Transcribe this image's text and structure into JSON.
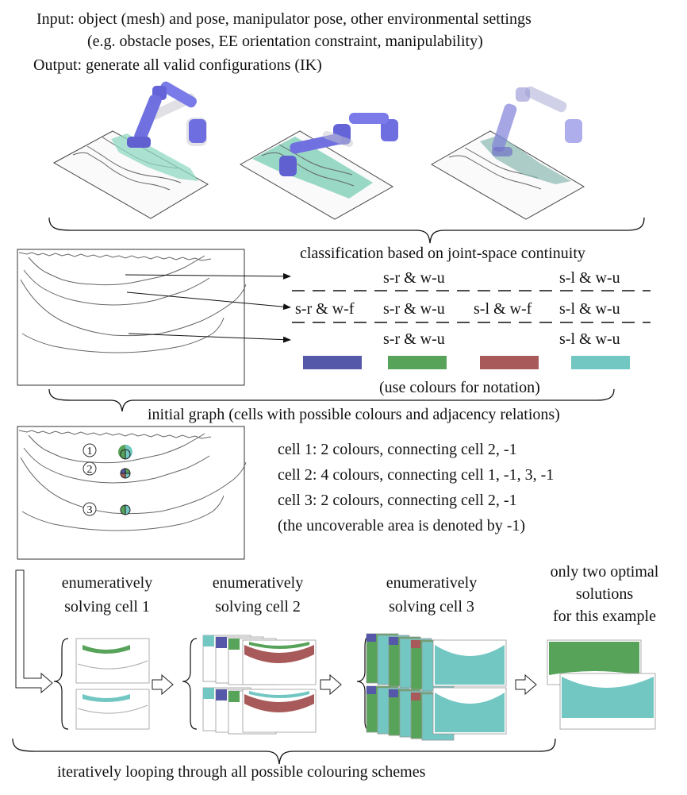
{
  "header": {
    "input_line1": "Input: object (mesh) and pose, manipulator pose, other environmental settings",
    "input_line2": "(e.g. obstacle poses, EE orientation constraint, manipulability)",
    "output_line": "Output: generate all valid configurations (IK)"
  },
  "classification": {
    "title": "classification based on joint-space continuity",
    "row1": {
      "left": "s-r & w-u",
      "right": "s-l & w-u"
    },
    "row2": [
      "s-r & w-f",
      "s-r & w-u",
      "s-l & w-f",
      "s-l & w-u"
    ],
    "row3": {
      "left": "s-r & w-u",
      "right": "s-l & w-u"
    },
    "swatches": [
      "#5558a8",
      "#58a35a",
      "#a85a5a",
      "#72c7c3"
    ],
    "note": "(use colours for notation)"
  },
  "graph": {
    "title": "initial graph (cells with possible colours and adjacency relations)",
    "cell_markers": [
      "1",
      "2",
      "3"
    ],
    "lines": [
      "cell 1: 2 colours, connecting cell 2, -1",
      "cell 2: 4 colours, connecting cell 1, -1, 3, -1",
      "cell 3: 2 colours, connecting cell 2, -1",
      "(the uncoverable area is denoted by -1)"
    ]
  },
  "solving": {
    "step1": [
      "enumeratively",
      "solving cell 1"
    ],
    "step2": [
      "enumeratively",
      "solving cell 2"
    ],
    "step3": [
      "enumeratively",
      "solving cell 3"
    ],
    "result": [
      "only two optimal",
      "solutions",
      "for this example"
    ]
  },
  "footer": {
    "caption": "iteratively looping through all possible colouring schemes"
  },
  "colors": {
    "blue": "#5558a8",
    "green": "#58a35a",
    "red": "#a85a5a",
    "cyan": "#72c7c3",
    "robot": "#6e6ee0"
  }
}
